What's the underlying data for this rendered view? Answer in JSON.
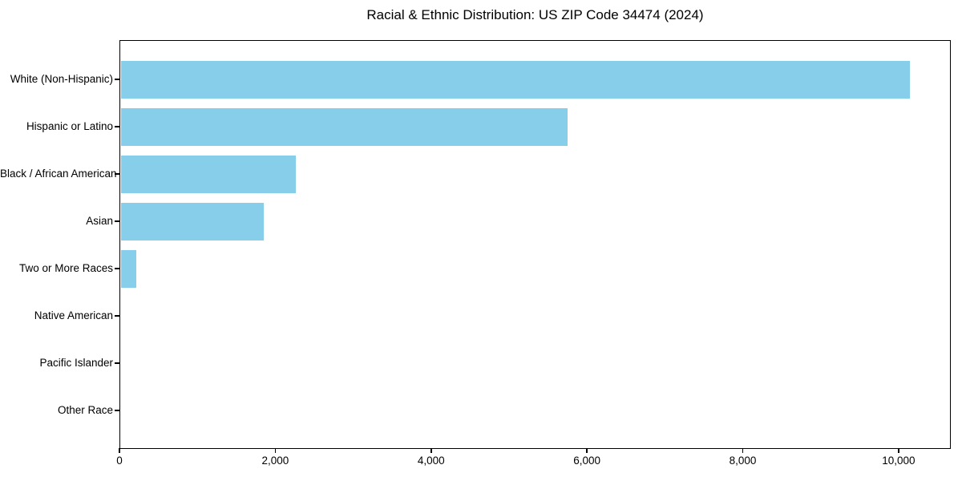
{
  "title": "Racial & Ethnic Distribution: US ZIP Code 34474 (2024)",
  "chart_data": {
    "type": "bar",
    "orientation": "horizontal",
    "title": "Racial & Ethnic Distribution: US ZIP Code 34474 (2024)",
    "categories": [
      "White (Non-Hispanic)",
      "Hispanic or Latino",
      "Black / African American",
      "Asian",
      "Two or More Races",
      "Native American",
      "Pacific Islander",
      "Other Race"
    ],
    "values": [
      10150,
      5750,
      2260,
      1850,
      220,
      0,
      0,
      0
    ],
    "xlabel": "",
    "ylabel": "",
    "xlim": [
      0,
      10670
    ],
    "x_ticks": [
      0,
      2000,
      4000,
      6000,
      8000,
      10000
    ],
    "x_tick_labels": [
      "0",
      "2,000",
      "4,000",
      "6,000",
      "8,000",
      "10,000"
    ],
    "bar_color": "#87CEEB",
    "background_color": "#ffffff",
    "text_color": "#000000",
    "grid": false,
    "legend": null
  }
}
